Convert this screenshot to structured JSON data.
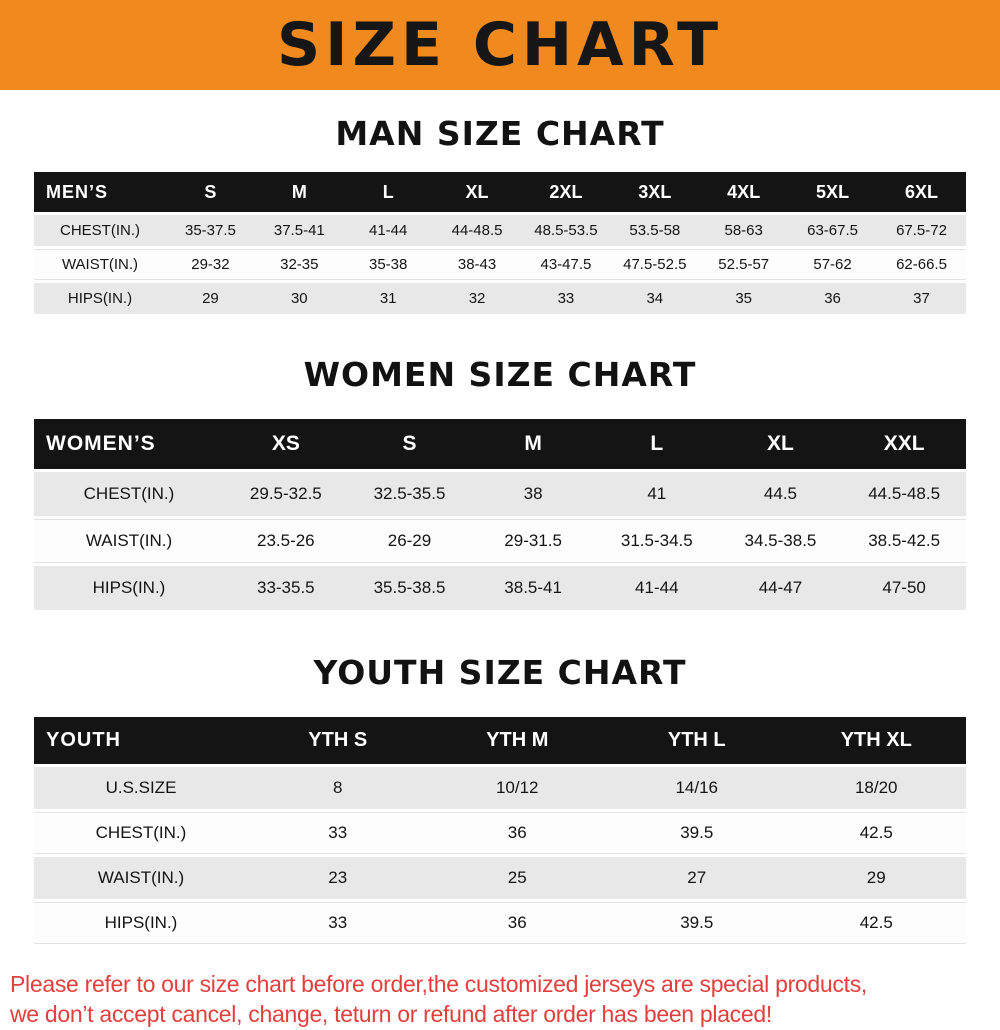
{
  "banner": {
    "title": "SIZE CHART",
    "bg_color": "#F0891E"
  },
  "chart_data": [
    {
      "type": "table",
      "title": "MAN SIZE CHART",
      "group_label": "MEN’S",
      "columns": [
        "S",
        "M",
        "L",
        "XL",
        "2XL",
        "3XL",
        "4XL",
        "5XL",
        "6XL"
      ],
      "rows": [
        {
          "label": "CHEST(IN.)",
          "values": [
            "35-37.5",
            "37.5-41",
            "41-44",
            "44-48.5",
            "48.5-53.5",
            "53.5-58",
            "58-63",
            "63-67.5",
            "67.5-72"
          ]
        },
        {
          "label": "WAIST(IN.)",
          "values": [
            "29-32",
            "32-35",
            "35-38",
            "38-43",
            "43-47.5",
            "47.5-52.5",
            "52.5-57",
            "57-62",
            "62-66.5"
          ]
        },
        {
          "label": "HIPS(IN.)",
          "values": [
            "29",
            "30",
            "31",
            "32",
            "33",
            "34",
            "35",
            "36",
            "37"
          ]
        }
      ]
    },
    {
      "type": "table",
      "title": "WOMEN SIZE CHART",
      "group_label": "WOMEN’S",
      "columns": [
        "XS",
        "S",
        "M",
        "L",
        "XL",
        "XXL"
      ],
      "rows": [
        {
          "label": "CHEST(IN.)",
          "values": [
            "29.5-32.5",
            "32.5-35.5",
            "38",
            "41",
            "44.5",
            "44.5-48.5"
          ]
        },
        {
          "label": "WAIST(IN.)",
          "values": [
            "23.5-26",
            "26-29",
            "29-31.5",
            "31.5-34.5",
            "34.5-38.5",
            "38.5-42.5"
          ]
        },
        {
          "label": "HIPS(IN.)",
          "values": [
            "33-35.5",
            "35.5-38.5",
            "38.5-41",
            "41-44",
            "44-47",
            "47-50"
          ]
        }
      ]
    },
    {
      "type": "table",
      "title": "YOUTH SIZE CHART",
      "group_label": "YOUTH",
      "columns": [
        "YTH S",
        "YTH M",
        "YTH L",
        "YTH XL"
      ],
      "rows": [
        {
          "label": "U.S.SIZE",
          "values": [
            "8",
            "10/12",
            "14/16",
            "18/20"
          ]
        },
        {
          "label": "CHEST(IN.)",
          "values": [
            "33",
            "36",
            "39.5",
            "42.5"
          ]
        },
        {
          "label": "WAIST(IN.)",
          "values": [
            "23",
            "25",
            "27",
            "29"
          ]
        },
        {
          "label": "HIPS(IN.)",
          "values": [
            "33",
            "36",
            "39.5",
            "42.5"
          ]
        }
      ]
    }
  ],
  "footer": {
    "color": "#E2403C",
    "line1": "Please refer to our size chart before order,the customized jerseys are special products,",
    "line2": "we don’t accept cancel, change, teturn or refund after order has been placed!"
  }
}
